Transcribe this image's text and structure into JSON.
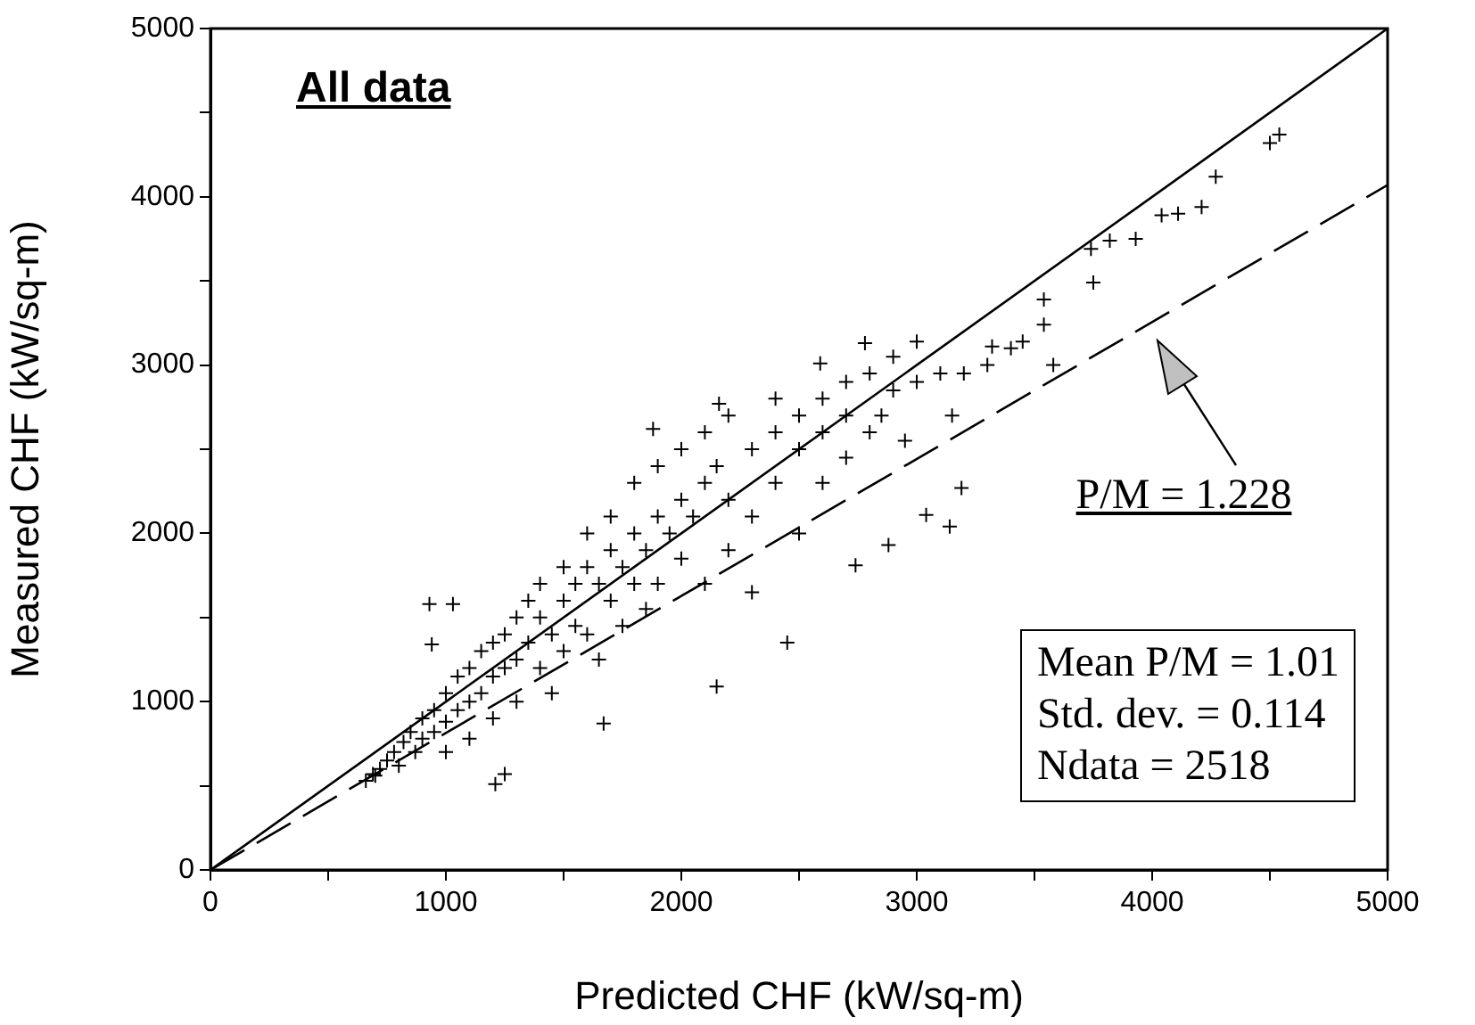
{
  "chart_data": {
    "type": "scatter",
    "xlabel": "Predicted CHF (kW/sq-m)",
    "ylabel": "Measured CHF (kW/sq-m)",
    "xlim": [
      0,
      5000
    ],
    "ylim": [
      0,
      5000
    ],
    "xticks": [
      0,
      {
        "value": 500,
        "label": null
      },
      1000,
      {
        "value": 1500,
        "label": null
      },
      2000,
      {
        "value": 2500,
        "label": null
      },
      3000,
      {
        "value": 3500,
        "label": null
      },
      4000,
      {
        "value": 4500,
        "label": null
      },
      5000
    ],
    "yticks": [
      0,
      {
        "value": 500,
        "label": null
      },
      1000,
      {
        "value": 1500,
        "label": null
      },
      2000,
      {
        "value": 2500,
        "label": null
      },
      3000,
      {
        "value": 3500,
        "label": null
      },
      4000,
      {
        "value": 4500,
        "label": null
      },
      5000
    ],
    "grid": false,
    "legend": false,
    "series": [
      {
        "color": "#000000",
        "marker": "cross",
        "x": [
          4540,
          4500,
          4270,
          4210,
          4110,
          4040,
          3930,
          3820,
          3740,
          3750,
          3540,
          3540,
          3580,
          3450,
          3320,
          3190,
          3040,
          3140,
          2880,
          2740,
          2450,
          2150,
          1670,
          1210,
          1250,
          930,
          1030,
          940,
          3000,
          2780,
          1880,
          2160,
          2590,
          660,
          690,
          700,
          720,
          750,
          780,
          800,
          820,
          850,
          870,
          900,
          900,
          950,
          950,
          1000,
          1000,
          1000,
          1050,
          1050,
          1100,
          1100,
          1100,
          1150,
          1150,
          1200,
          1200,
          1200,
          1250,
          1250,
          1300,
          1300,
          1300,
          1350,
          1350,
          1400,
          1400,
          1400,
          1450,
          1450,
          1500,
          1500,
          1500,
          1550,
          1550,
          1600,
          1600,
          1600,
          1650,
          1650,
          1700,
          1700,
          1700,
          1750,
          1750,
          1800,
          1800,
          1800,
          1850,
          1850,
          1900,
          1900,
          1900,
          1950,
          2000,
          2000,
          2000,
          2050,
          2100,
          2100,
          2100,
          2150,
          2200,
          2200,
          2200,
          2300,
          2300,
          2300,
          2400,
          2400,
          2400,
          2500,
          2500,
          2500,
          2600,
          2600,
          2600,
          2700,
          2700,
          2700,
          2800,
          2800,
          2850,
          2900,
          2900,
          2950,
          3000,
          3100,
          3150,
          3200,
          3300,
          3400
        ],
        "values": [
          4370,
          4320,
          4120,
          3940,
          3900,
          3890,
          3750,
          3740,
          3690,
          3490,
          3390,
          3240,
          3000,
          3140,
          3110,
          2270,
          2110,
          2040,
          1930,
          1810,
          1350,
          1090,
          870,
          510,
          570,
          1580,
          1580,
          1340,
          3140,
          3130,
          2620,
          2770,
          3010,
          530,
          570,
          560,
          600,
          650,
          700,
          620,
          760,
          820,
          700,
          900,
          780,
          950,
          820,
          1050,
          880,
          700,
          1150,
          950,
          1200,
          1000,
          780,
          1300,
          1050,
          1350,
          1150,
          900,
          1400,
          1200,
          1250,
          1500,
          1000,
          1350,
          1600,
          1500,
          1200,
          1700,
          1400,
          1050,
          1600,
          1800,
          1300,
          1700,
          1450,
          1800,
          2000,
          1400,
          1700,
          1250,
          1900,
          1600,
          2100,
          1800,
          1450,
          2000,
          1700,
          2300,
          1900,
          1550,
          2100,
          2400,
          1700,
          2000,
          2200,
          1850,
          2500,
          2100,
          2300,
          1700,
          2600,
          2400,
          2200,
          2700,
          1900,
          2500,
          2100,
          1650,
          2600,
          2300,
          2800,
          2500,
          2700,
          2000,
          2800,
          2600,
          2300,
          2900,
          2700,
          2450,
          2950,
          2600,
          2700,
          2850,
          3050,
          2550,
          2900,
          2950,
          2700,
          2950,
          3000,
          3100
        ]
      },
      {
        "type": "line",
        "color": "#000000",
        "line_style": "solid",
        "x": [
          0,
          5000
        ],
        "values": [
          0,
          5000
        ]
      },
      {
        "type": "line",
        "color": "#000000",
        "line_style": "dashed",
        "x": [
          0,
          5000
        ],
        "values": [
          0,
          4070
        ]
      }
    ],
    "annotations": [
      "All data",
      "P/M = 1.228",
      "Mean P/M = 1.01",
      "Std. dev. = 0.114",
      "Ndata = 2518"
    ]
  }
}
